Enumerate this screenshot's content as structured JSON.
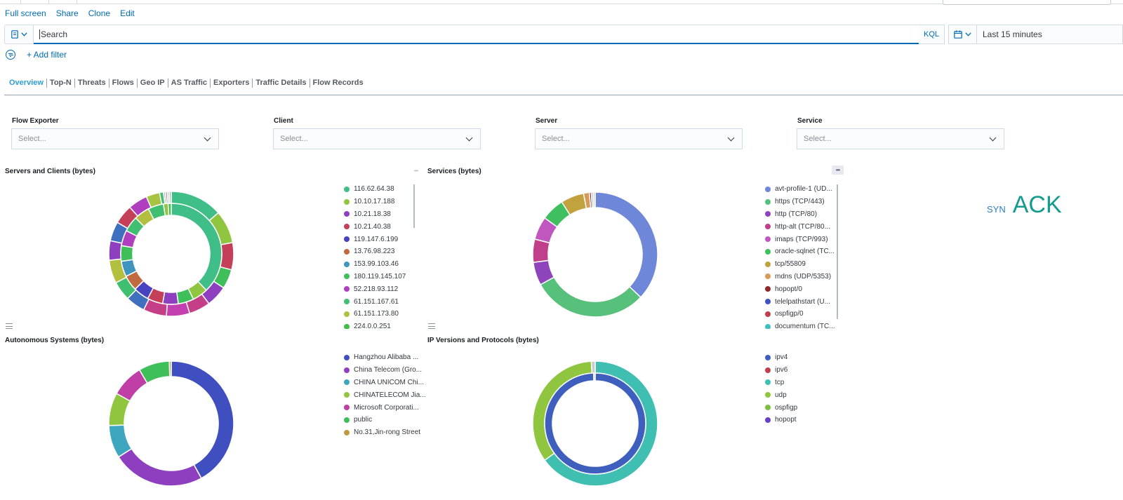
{
  "toplinks": [
    "Full screen",
    "Share",
    "Clone",
    "Edit"
  ],
  "query": {
    "placeholder": "Search",
    "language": "KQL",
    "time_range": "Last 15 minutes"
  },
  "filter": {
    "add_label": "+ Add filter"
  },
  "nav_tabs": [
    "Overview",
    "Top-N",
    "Threats",
    "Flows",
    "Geo IP",
    "AS Traffic",
    "Exporters",
    "Traffic Details",
    "Flow Records"
  ],
  "controls": [
    {
      "label": "Flow Exporter",
      "placeholder": "Select..."
    },
    {
      "label": "Client",
      "placeholder": "Select..."
    },
    {
      "label": "Server",
      "placeholder": "Select..."
    },
    {
      "label": "Service",
      "placeholder": "Select..."
    }
  ],
  "syn_ack": {
    "syn": "SYN",
    "ack": "ACK"
  },
  "panels": {
    "servers_clients": {
      "title": "Servers and Clients (bytes)",
      "legend": [
        {
          "label": "116.62.64.38",
          "color": "#3fbf87"
        },
        {
          "label": "10.10.17.188",
          "color": "#8fc53f"
        },
        {
          "label": "10.21.18.38",
          "color": "#8e3fbf"
        },
        {
          "label": "10.21.40.38",
          "color": "#c43f58"
        },
        {
          "label": "119.147.6.199",
          "color": "#4742bf"
        },
        {
          "label": "13.76.98.223",
          "color": "#bf6b3f"
        },
        {
          "label": "153.99.103.46",
          "color": "#3f94bf"
        },
        {
          "label": "180.119.145.107",
          "color": "#3fbf5a"
        },
        {
          "label": "52.218.93.112",
          "color": "#b03fbf"
        },
        {
          "label": "61.151.167.61",
          "color": "#3fbf6f"
        },
        {
          "label": "61.151.173.80",
          "color": "#b2bf3f"
        },
        {
          "label": "224.0.0.251",
          "color": "#3fbf4a"
        }
      ]
    },
    "services": {
      "title": "Services (bytes)",
      "legend": [
        {
          "label": "avt-profile-1 (UD...",
          "color": "#6f87d8"
        },
        {
          "label": "https (TCP/443)",
          "color": "#57c17b"
        },
        {
          "label": "http (TCP/80)",
          "color": "#8e44bb"
        },
        {
          "label": "http-alt (TCP/80...",
          "color": "#bf3f8a"
        },
        {
          "label": "imaps (TCP/993)",
          "color": "#bf57bf"
        },
        {
          "label": "oracle-sqlnet (TC...",
          "color": "#3fbf5f"
        },
        {
          "label": "tcp/55809",
          "color": "#c2a13f"
        },
        {
          "label": "mdns (UDP/5353)",
          "color": "#d89a57"
        },
        {
          "label": "hopopt/0",
          "color": "#8c2d2d"
        },
        {
          "label": "telelpathstart (U...",
          "color": "#4052bf"
        },
        {
          "label": "ospfigp/0",
          "color": "#bf3f4f"
        },
        {
          "label": "documentum (TC...",
          "color": "#3fbfbf"
        }
      ]
    },
    "autonomous": {
      "title": "Autonomous Systems (bytes)",
      "legend": [
        {
          "label": "Hangzhou Alibaba ...",
          "color": "#3f4fbf"
        },
        {
          "label": "China Telecom (Gro...",
          "color": "#8e3fbf"
        },
        {
          "label": "CHINA UNICOM Chi...",
          "color": "#3fa6bf"
        },
        {
          "label": "CHINATELECOM Jia...",
          "color": "#8fc53f"
        },
        {
          "label": "Microsoft Corporati...",
          "color": "#bf3fa6"
        },
        {
          "label": "public",
          "color": "#3fbf5a"
        },
        {
          "label": "No.31,Jin-rong Street",
          "color": "#bf9a3f"
        }
      ]
    },
    "ipversions": {
      "title": "IP Versions and Protocols (bytes)",
      "legend": [
        {
          "label": "ipv4",
          "color": "#3f5fbf"
        },
        {
          "label": "ipv6",
          "color": "#bf3f4f"
        },
        {
          "label": "tcp",
          "color": "#3fbfb2"
        },
        {
          "label": "udp",
          "color": "#8fc53f"
        },
        {
          "label": "ospfigp",
          "color": "#7fbf3f"
        },
        {
          "label": "hopopt",
          "color": "#6a3fbf"
        }
      ]
    }
  },
  "chart_data": [
    {
      "type": "pie",
      "title": "Servers and Clients (bytes)",
      "donut_rings": [
        {
          "ring": "outer",
          "slices": [
            {
              "color": "#3fbf87",
              "value": 13.5
            },
            {
              "color": "#8fc53f",
              "value": 8.5
            },
            {
              "color": "#c43f58",
              "value": 7
            },
            {
              "color": "#3fbf5a",
              "value": 5
            },
            {
              "color": "#8e3fbf",
              "value": 5.5
            },
            {
              "color": "#c43f88",
              "value": 5.5
            },
            {
              "color": "#c43fb0",
              "value": 6
            },
            {
              "color": "#c43f88",
              "value": 6
            },
            {
              "color": "#3f6fbf",
              "value": 5
            },
            {
              "color": "#3fbf6f",
              "value": 5
            },
            {
              "color": "#b2bf3f",
              "value": 6
            },
            {
              "color": "#8e3fbf",
              "value": 5
            },
            {
              "color": "#3f6fbf",
              "value": 5
            },
            {
              "color": "#c43f58",
              "value": 5
            },
            {
              "color": "#b03fbf",
              "value": 5
            },
            {
              "color": "#a6c43f",
              "value": 3.5
            },
            {
              "color": "#3fbf6f",
              "value": 1
            },
            {
              "color": "#bbbbbb",
              "value": 0.5
            },
            {
              "color": "#999999",
              "value": 0.5
            },
            {
              "color": "#cccccc",
              "value": 0.5
            },
            {
              "color": "#aaaaaa",
              "value": 0.5
            }
          ]
        },
        {
          "ring": "inner",
          "slices": [
            {
              "color": "#3fbf87",
              "value": 38
            },
            {
              "color": "#8fc53f",
              "value": 5
            },
            {
              "color": "#3fbf5a",
              "value": 5
            },
            {
              "color": "#8e3fbf",
              "value": 5
            },
            {
              "color": "#c43f58",
              "value": 5
            },
            {
              "color": "#4742bf",
              "value": 5
            },
            {
              "color": "#bf6b3f",
              "value": 5
            },
            {
              "color": "#3f94bf",
              "value": 5
            },
            {
              "color": "#3fbf5a",
              "value": 5
            },
            {
              "color": "#b03fbf",
              "value": 5
            },
            {
              "color": "#3fbf6f",
              "value": 5
            },
            {
              "color": "#b2bf3f",
              "value": 5
            },
            {
              "color": "#3fbf6f",
              "value": 5
            },
            {
              "color": "#8fc53f",
              "value": 1.5
            },
            {
              "color": "#3fbf4a",
              "value": 1
            }
          ]
        }
      ]
    },
    {
      "type": "pie",
      "title": "Services (bytes)",
      "donut_rings": [
        {
          "ring": "single",
          "slices": [
            {
              "color": "#6f87d8",
              "value": 37
            },
            {
              "color": "#57c17b",
              "value": 30
            },
            {
              "color": "#8e44bb",
              "value": 6
            },
            {
              "color": "#bf3f8a",
              "value": 6
            },
            {
              "color": "#bf57bf",
              "value": 6
            },
            {
              "color": "#3fbf5f",
              "value": 6
            },
            {
              "color": "#c2a13f",
              "value": 6
            },
            {
              "color": "#d89a57",
              "value": 1.5
            },
            {
              "color": "#8c2d2d",
              "value": 0.5
            },
            {
              "color": "#bbbbbb",
              "value": 0.5
            },
            {
              "color": "#cccccc",
              "value": 0.5
            }
          ]
        }
      ]
    },
    {
      "type": "pie",
      "title": "Autonomous Systems (bytes)",
      "donut_rings": [
        {
          "ring": "single",
          "slices": [
            {
              "color": "#3f4fbf",
              "value": 42
            },
            {
              "color": "#8e3fbf",
              "value": 24
            },
            {
              "color": "#3fa6bf",
              "value": 8.5
            },
            {
              "color": "#8fc53f",
              "value": 8.5
            },
            {
              "color": "#bf3fa6",
              "value": 8.5
            },
            {
              "color": "#3fbf5a",
              "value": 8
            },
            {
              "color": "#bf9a3f",
              "value": 0.5
            }
          ]
        }
      ]
    },
    {
      "type": "pie",
      "title": "IP Versions and Protocols (bytes)",
      "donut_rings": [
        {
          "ring": "outer",
          "slices": [
            {
              "color": "#3fbfb2",
              "value": 65
            },
            {
              "color": "#8fc53f",
              "value": 34
            },
            {
              "color": "#cccccc",
              "value": 1
            }
          ]
        },
        {
          "ring": "inner",
          "slices": [
            {
              "color": "#3f5fbf",
              "value": 99.5
            },
            {
              "color": "#bbbbbb",
              "value": 0.5
            }
          ]
        }
      ]
    }
  ]
}
